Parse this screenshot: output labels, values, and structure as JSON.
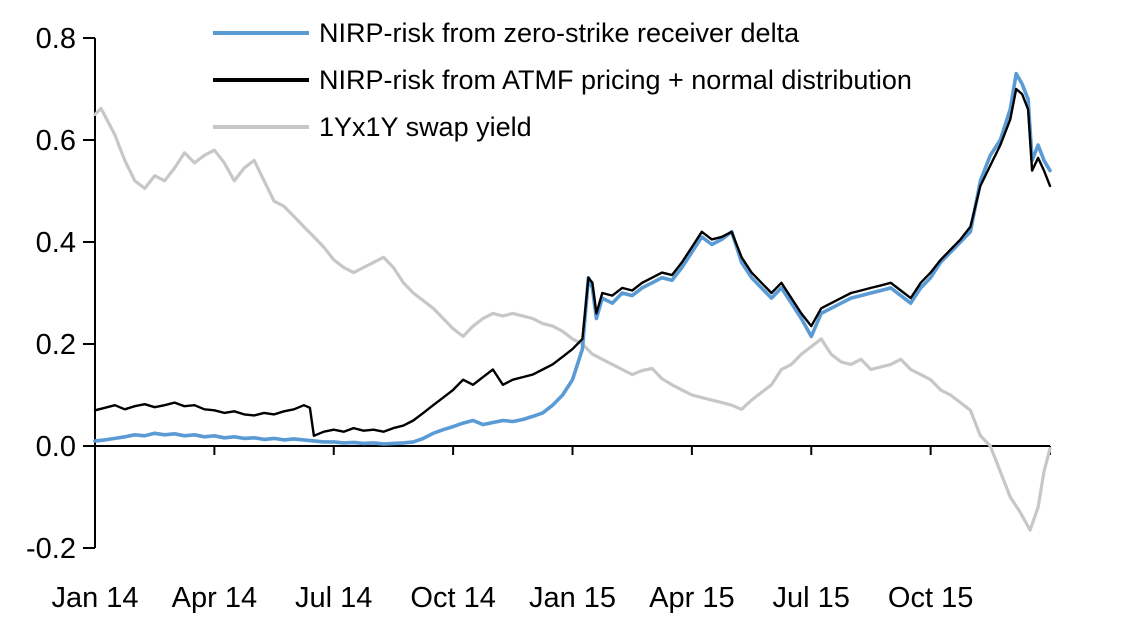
{
  "chart_data": {
    "type": "line",
    "title": "",
    "xlabel": "",
    "ylabel": "",
    "grid": false,
    "legend_position": "top-left-inside",
    "x_range": [
      0,
      24
    ],
    "y_range": [
      -0.2,
      0.8
    ],
    "y_ticks": [
      0.8,
      0.6,
      0.4,
      0.2,
      0.0,
      -0.2
    ],
    "y_tick_labels": [
      "0.8",
      "0.6",
      "0.4",
      "0.2",
      "0.0",
      "-0.2"
    ],
    "x_ticks": [
      0,
      3,
      6,
      9,
      12,
      15,
      18,
      21,
      24
    ],
    "x_tick_labels": [
      "Jan 14",
      "Apr 14",
      "Jul 14",
      "Oct 14",
      "Jan 15",
      "Apr 15",
      "Jul 15",
      "Oct 15",
      ""
    ],
    "series": [
      {
        "name": "NIRP-risk from zero-strike receiver delta",
        "color": "#5B9BD5",
        "width": 3.6,
        "z": 2,
        "points": [
          [
            0,
            0.01
          ],
          [
            0.25,
            0.012
          ],
          [
            0.5,
            0.015
          ],
          [
            0.75,
            0.018
          ],
          [
            1,
            0.022
          ],
          [
            1.25,
            0.02
          ],
          [
            1.5,
            0.025
          ],
          [
            1.75,
            0.022
          ],
          [
            2,
            0.024
          ],
          [
            2.25,
            0.02
          ],
          [
            2.5,
            0.022
          ],
          [
            2.75,
            0.018
          ],
          [
            3,
            0.02
          ],
          [
            3.25,
            0.016
          ],
          [
            3.5,
            0.018
          ],
          [
            3.75,
            0.015
          ],
          [
            4,
            0.016
          ],
          [
            4.25,
            0.013
          ],
          [
            4.5,
            0.015
          ],
          [
            4.75,
            0.012
          ],
          [
            5,
            0.014
          ],
          [
            5.25,
            0.012
          ],
          [
            5.5,
            0.01
          ],
          [
            5.75,
            0.008
          ],
          [
            6,
            0.008
          ],
          [
            6.25,
            0.006
          ],
          [
            6.5,
            0.007
          ],
          [
            6.75,
            0.005
          ],
          [
            7,
            0.006
          ],
          [
            7.25,
            0.004
          ],
          [
            7.5,
            0.005
          ],
          [
            7.75,
            0.006
          ],
          [
            8,
            0.008
          ],
          [
            8.25,
            0.015
          ],
          [
            8.5,
            0.025
          ],
          [
            8.75,
            0.032
          ],
          [
            9,
            0.038
          ],
          [
            9.25,
            0.045
          ],
          [
            9.5,
            0.05
          ],
          [
            9.75,
            0.042
          ],
          [
            10,
            0.046
          ],
          [
            10.25,
            0.05
          ],
          [
            10.5,
            0.048
          ],
          [
            10.75,
            0.052
          ],
          [
            11,
            0.058
          ],
          [
            11.25,
            0.065
          ],
          [
            11.5,
            0.08
          ],
          [
            11.75,
            0.1
          ],
          [
            12,
            0.13
          ],
          [
            12.25,
            0.19
          ],
          [
            12.4,
            0.33
          ],
          [
            12.5,
            0.31
          ],
          [
            12.6,
            0.25
          ],
          [
            12.75,
            0.29
          ],
          [
            13,
            0.28
          ],
          [
            13.25,
            0.3
          ],
          [
            13.5,
            0.295
          ],
          [
            13.75,
            0.31
          ],
          [
            14,
            0.32
          ],
          [
            14.25,
            0.33
          ],
          [
            14.5,
            0.325
          ],
          [
            14.75,
            0.35
          ],
          [
            15,
            0.38
          ],
          [
            15.25,
            0.41
          ],
          [
            15.5,
            0.395
          ],
          [
            15.75,
            0.405
          ],
          [
            16,
            0.42
          ],
          [
            16.25,
            0.36
          ],
          [
            16.5,
            0.33
          ],
          [
            16.75,
            0.31
          ],
          [
            17,
            0.29
          ],
          [
            17.25,
            0.31
          ],
          [
            17.5,
            0.28
          ],
          [
            17.75,
            0.25
          ],
          [
            18,
            0.215
          ],
          [
            18.25,
            0.26
          ],
          [
            18.5,
            0.27
          ],
          [
            18.75,
            0.28
          ],
          [
            19,
            0.29
          ],
          [
            19.25,
            0.295
          ],
          [
            19.5,
            0.3
          ],
          [
            19.75,
            0.305
          ],
          [
            20,
            0.31
          ],
          [
            20.25,
            0.295
          ],
          [
            20.5,
            0.28
          ],
          [
            20.75,
            0.31
          ],
          [
            21,
            0.33
          ],
          [
            21.25,
            0.36
          ],
          [
            21.5,
            0.38
          ],
          [
            21.75,
            0.4
          ],
          [
            22,
            0.42
          ],
          [
            22.25,
            0.52
          ],
          [
            22.5,
            0.57
          ],
          [
            22.75,
            0.6
          ],
          [
            23,
            0.66
          ],
          [
            23.15,
            0.73
          ],
          [
            23.3,
            0.71
          ],
          [
            23.45,
            0.68
          ],
          [
            23.55,
            0.56
          ],
          [
            23.7,
            0.59
          ],
          [
            23.85,
            0.56
          ],
          [
            24,
            0.54
          ]
        ]
      },
      {
        "name": "NIRP-risk from ATMF pricing + normal distribution",
        "color": "#000000",
        "width": 2.4,
        "z": 3,
        "points": [
          [
            0,
            0.07
          ],
          [
            0.25,
            0.075
          ],
          [
            0.5,
            0.08
          ],
          [
            0.75,
            0.072
          ],
          [
            1,
            0.078
          ],
          [
            1.25,
            0.082
          ],
          [
            1.5,
            0.076
          ],
          [
            1.75,
            0.08
          ],
          [
            2,
            0.085
          ],
          [
            2.25,
            0.078
          ],
          [
            2.5,
            0.08
          ],
          [
            2.75,
            0.072
          ],
          [
            3,
            0.07
          ],
          [
            3.25,
            0.065
          ],
          [
            3.5,
            0.068
          ],
          [
            3.75,
            0.062
          ],
          [
            4,
            0.06
          ],
          [
            4.25,
            0.065
          ],
          [
            4.5,
            0.062
          ],
          [
            4.75,
            0.068
          ],
          [
            5,
            0.072
          ],
          [
            5.25,
            0.08
          ],
          [
            5.4,
            0.075
          ],
          [
            5.5,
            0.02
          ],
          [
            5.75,
            0.028
          ],
          [
            6,
            0.032
          ],
          [
            6.25,
            0.028
          ],
          [
            6.5,
            0.035
          ],
          [
            6.75,
            0.03
          ],
          [
            7,
            0.032
          ],
          [
            7.25,
            0.028
          ],
          [
            7.5,
            0.035
          ],
          [
            7.75,
            0.04
          ],
          [
            8,
            0.05
          ],
          [
            8.25,
            0.065
          ],
          [
            8.5,
            0.08
          ],
          [
            8.75,
            0.095
          ],
          [
            9,
            0.11
          ],
          [
            9.25,
            0.13
          ],
          [
            9.5,
            0.12
          ],
          [
            9.75,
            0.135
          ],
          [
            10,
            0.15
          ],
          [
            10.25,
            0.12
          ],
          [
            10.5,
            0.13
          ],
          [
            10.75,
            0.135
          ],
          [
            11,
            0.14
          ],
          [
            11.25,
            0.15
          ],
          [
            11.5,
            0.16
          ],
          [
            11.75,
            0.175
          ],
          [
            12,
            0.19
          ],
          [
            12.25,
            0.21
          ],
          [
            12.4,
            0.33
          ],
          [
            12.5,
            0.32
          ],
          [
            12.6,
            0.26
          ],
          [
            12.75,
            0.3
          ],
          [
            13,
            0.295
          ],
          [
            13.25,
            0.31
          ],
          [
            13.5,
            0.305
          ],
          [
            13.75,
            0.32
          ],
          [
            14,
            0.33
          ],
          [
            14.25,
            0.34
          ],
          [
            14.5,
            0.335
          ],
          [
            14.75,
            0.36
          ],
          [
            15,
            0.39
          ],
          [
            15.25,
            0.42
          ],
          [
            15.5,
            0.405
          ],
          [
            15.75,
            0.41
          ],
          [
            16,
            0.42
          ],
          [
            16.25,
            0.37
          ],
          [
            16.5,
            0.34
          ],
          [
            16.75,
            0.32
          ],
          [
            17,
            0.3
          ],
          [
            17.25,
            0.32
          ],
          [
            17.5,
            0.29
          ],
          [
            17.75,
            0.26
          ],
          [
            18,
            0.235
          ],
          [
            18.25,
            0.27
          ],
          [
            18.5,
            0.28
          ],
          [
            18.75,
            0.29
          ],
          [
            19,
            0.3
          ],
          [
            19.25,
            0.305
          ],
          [
            19.5,
            0.31
          ],
          [
            19.75,
            0.315
          ],
          [
            20,
            0.32
          ],
          [
            20.25,
            0.305
          ],
          [
            20.5,
            0.29
          ],
          [
            20.75,
            0.32
          ],
          [
            21,
            0.34
          ],
          [
            21.25,
            0.365
          ],
          [
            21.5,
            0.385
          ],
          [
            21.75,
            0.405
          ],
          [
            22,
            0.43
          ],
          [
            22.25,
            0.51
          ],
          [
            22.5,
            0.55
          ],
          [
            22.75,
            0.59
          ],
          [
            23,
            0.64
          ],
          [
            23.15,
            0.7
          ],
          [
            23.3,
            0.69
          ],
          [
            23.45,
            0.66
          ],
          [
            23.55,
            0.54
          ],
          [
            23.7,
            0.565
          ],
          [
            23.85,
            0.54
          ],
          [
            24,
            0.51
          ]
        ]
      },
      {
        "name": "1Yx1Y swap yield",
        "color": "#C7C7C7",
        "width": 3.2,
        "z": 1,
        "points": [
          [
            0,
            0.65
          ],
          [
            0.15,
            0.662
          ],
          [
            0.3,
            0.64
          ],
          [
            0.5,
            0.61
          ],
          [
            0.75,
            0.56
          ],
          [
            1,
            0.52
          ],
          [
            1.25,
            0.505
          ],
          [
            1.5,
            0.53
          ],
          [
            1.75,
            0.52
          ],
          [
            2,
            0.545
          ],
          [
            2.25,
            0.575
          ],
          [
            2.5,
            0.555
          ],
          [
            2.75,
            0.57
          ],
          [
            3,
            0.58
          ],
          [
            3.25,
            0.555
          ],
          [
            3.5,
            0.52
          ],
          [
            3.75,
            0.545
          ],
          [
            4,
            0.56
          ],
          [
            4.25,
            0.52
          ],
          [
            4.5,
            0.48
          ],
          [
            4.75,
            0.47
          ],
          [
            5,
            0.45
          ],
          [
            5.25,
            0.43
          ],
          [
            5.5,
            0.41
          ],
          [
            5.75,
            0.39
          ],
          [
            6,
            0.365
          ],
          [
            6.25,
            0.35
          ],
          [
            6.5,
            0.34
          ],
          [
            6.75,
            0.35
          ],
          [
            7,
            0.36
          ],
          [
            7.25,
            0.37
          ],
          [
            7.5,
            0.35
          ],
          [
            7.75,
            0.32
          ],
          [
            8,
            0.3
          ],
          [
            8.25,
            0.285
          ],
          [
            8.5,
            0.27
          ],
          [
            8.75,
            0.25
          ],
          [
            9,
            0.23
          ],
          [
            9.25,
            0.215
          ],
          [
            9.5,
            0.235
          ],
          [
            9.75,
            0.25
          ],
          [
            10,
            0.26
          ],
          [
            10.25,
            0.255
          ],
          [
            10.5,
            0.26
          ],
          [
            10.75,
            0.255
          ],
          [
            11,
            0.25
          ],
          [
            11.25,
            0.24
          ],
          [
            11.5,
            0.235
          ],
          [
            11.75,
            0.225
          ],
          [
            12,
            0.21
          ],
          [
            12.25,
            0.2
          ],
          [
            12.5,
            0.18
          ],
          [
            12.75,
            0.17
          ],
          [
            13,
            0.16
          ],
          [
            13.25,
            0.15
          ],
          [
            13.5,
            0.14
          ],
          [
            13.75,
            0.148
          ],
          [
            14,
            0.152
          ],
          [
            14.25,
            0.132
          ],
          [
            14.5,
            0.12
          ],
          [
            14.75,
            0.11
          ],
          [
            15,
            0.1
          ],
          [
            15.25,
            0.095
          ],
          [
            15.5,
            0.09
          ],
          [
            15.75,
            0.085
          ],
          [
            16,
            0.08
          ],
          [
            16.25,
            0.072
          ],
          [
            16.5,
            0.09
          ],
          [
            16.75,
            0.105
          ],
          [
            17,
            0.12
          ],
          [
            17.25,
            0.15
          ],
          [
            17.5,
            0.16
          ],
          [
            17.75,
            0.18
          ],
          [
            18,
            0.195
          ],
          [
            18.25,
            0.21
          ],
          [
            18.5,
            0.18
          ],
          [
            18.75,
            0.165
          ],
          [
            19,
            0.16
          ],
          [
            19.25,
            0.17
          ],
          [
            19.5,
            0.15
          ],
          [
            19.75,
            0.155
          ],
          [
            20,
            0.16
          ],
          [
            20.25,
            0.17
          ],
          [
            20.5,
            0.15
          ],
          [
            20.75,
            0.14
          ],
          [
            21,
            0.13
          ],
          [
            21.25,
            0.11
          ],
          [
            21.5,
            0.1
          ],
          [
            21.75,
            0.085
          ],
          [
            22,
            0.07
          ],
          [
            22.25,
            0.02
          ],
          [
            22.5,
            0.0
          ],
          [
            22.75,
            -0.05
          ],
          [
            23,
            -0.1
          ],
          [
            23.25,
            -0.13
          ],
          [
            23.5,
            -0.165
          ],
          [
            23.7,
            -0.12
          ],
          [
            23.85,
            -0.05
          ],
          [
            24,
            -0.005
          ]
        ]
      }
    ]
  },
  "axis_style": {
    "color": "#000000",
    "tick_font_size": 29
  }
}
